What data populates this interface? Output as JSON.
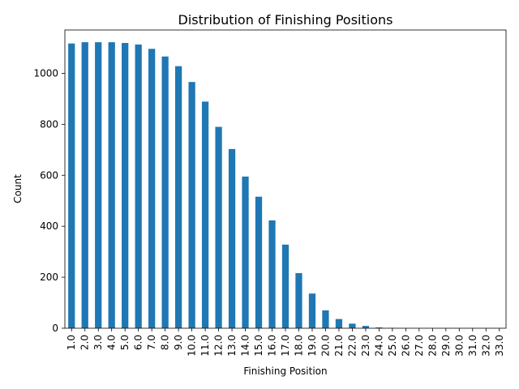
{
  "chart_data": {
    "type": "bar",
    "title": "Distribution of Finishing Positions",
    "xlabel": "Finishing Position",
    "ylabel": "Count",
    "ylim": [
      0,
      1170
    ],
    "yticks": [
      0,
      200,
      400,
      600,
      800,
      1000
    ],
    "categories": [
      "1.0",
      "2.0",
      "3.0",
      "4.0",
      "5.0",
      "6.0",
      "7.0",
      "8.0",
      "9.0",
      "10.0",
      "11.0",
      "12.0",
      "13.0",
      "14.0",
      "15.0",
      "16.0",
      "17.0",
      "18.0",
      "19.0",
      "20.0",
      "21.0",
      "22.0",
      "23.0",
      "24.0",
      "25.0",
      "26.0",
      "27.0",
      "28.0",
      "29.0",
      "30.0",
      "31.0",
      "32.0",
      "33.0"
    ],
    "values": [
      1117,
      1122,
      1122,
      1122,
      1119,
      1113,
      1096,
      1066,
      1028,
      966,
      889,
      790,
      703,
      595,
      516,
      423,
      328,
      216,
      136,
      70,
      36,
      18,
      9,
      3,
      1,
      0,
      0,
      0,
      0,
      0,
      0,
      0,
      0
    ],
    "bar_color": "#1f77b4",
    "grid": false,
    "legend": "none"
  }
}
